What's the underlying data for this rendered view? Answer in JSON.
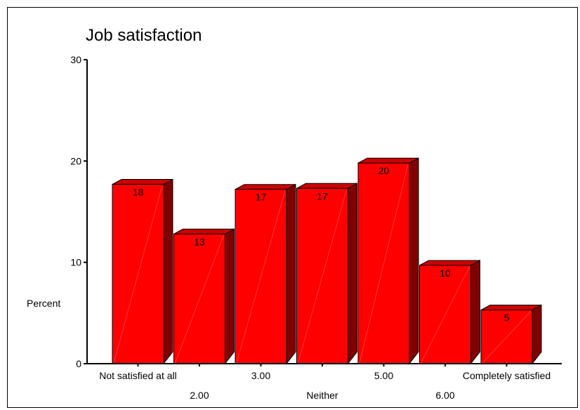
{
  "chart_data": {
    "type": "bar",
    "title": "Job satisfaction",
    "xlabel": "",
    "ylabel": "Percent",
    "ylim": [
      0,
      30
    ],
    "yticks": [
      "0",
      "10",
      "20",
      "30"
    ],
    "categories": [
      "Not satisfied at all",
      "2.00",
      "3.00",
      "Neither",
      "5.00",
      "6.00",
      "Completely satisfied"
    ],
    "values": [
      17.7,
      12.8,
      17.2,
      17.3,
      19.8,
      9.7,
      5.3
    ],
    "data_labels": [
      "18",
      "13",
      "17",
      "17",
      "20",
      "10",
      "5"
    ],
    "colors": {
      "front": "#ff0000",
      "top": "#cc0000",
      "side": "#800000",
      "edge": "#000000"
    }
  }
}
